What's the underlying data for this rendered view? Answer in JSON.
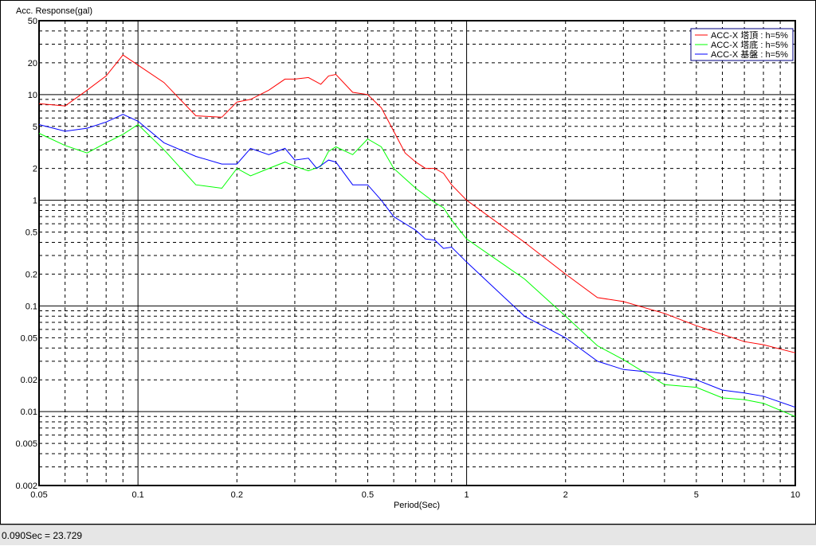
{
  "chart_data": {
    "type": "line",
    "title": "",
    "ylabel": "Acc. Response(gal)",
    "xlabel": "Period(Sec)",
    "xscale": "log",
    "yscale": "log",
    "xlim": [
      0.05,
      10
    ],
    "ylim": [
      0.002,
      50
    ],
    "grid": true,
    "legend_placement": "top-right",
    "x_ticks": [
      "0.05",
      "0.1",
      "0.2",
      "0.5",
      "1",
      "2",
      "5",
      "10"
    ],
    "y_ticks": [
      "50",
      "20",
      "10",
      "5",
      "2",
      "1",
      "0.5",
      "0.2",
      "0.1",
      "0.05",
      "0.02",
      "0.01",
      "0.005",
      "0.002"
    ],
    "series": [
      {
        "name": "ACC-X 塔頂 : h=5%",
        "color": "#ff0000",
        "x": [
          0.05,
          0.06,
          0.07,
          0.08,
          0.09,
          0.1,
          0.12,
          0.15,
          0.18,
          0.2,
          0.22,
          0.25,
          0.28,
          0.3,
          0.33,
          0.36,
          0.38,
          0.4,
          0.45,
          0.5,
          0.55,
          0.6,
          0.65,
          0.7,
          0.75,
          0.8,
          0.85,
          0.9,
          1,
          1.5,
          2,
          2.5,
          3,
          4,
          5,
          7,
          8,
          10
        ],
        "y": [
          8.2,
          7.8,
          11,
          15,
          23.7,
          19,
          13,
          6.3,
          6.1,
          8.5,
          9,
          11,
          14,
          14,
          14.5,
          12.5,
          15,
          15.5,
          10.5,
          10,
          7.5,
          4.5,
          2.8,
          2.3,
          2,
          2,
          1.8,
          1.4,
          1.0,
          0.4,
          0.2,
          0.12,
          0.11,
          0.085,
          0.065,
          0.046,
          0.043,
          0.036
        ]
      },
      {
        "name": "ACC-X 塔底 : h=5%",
        "color": "#00ff00",
        "x": [
          0.05,
          0.06,
          0.07,
          0.08,
          0.09,
          0.1,
          0.12,
          0.15,
          0.18,
          0.2,
          0.22,
          0.25,
          0.28,
          0.3,
          0.33,
          0.36,
          0.38,
          0.4,
          0.45,
          0.5,
          0.55,
          0.6,
          0.7,
          0.8,
          0.85,
          0.9,
          1,
          1.5,
          2,
          2.5,
          3,
          4,
          5,
          6,
          7,
          8,
          10
        ],
        "y": [
          4.3,
          3.3,
          2.8,
          3.5,
          4.2,
          5.2,
          3,
          1.4,
          1.3,
          2,
          1.7,
          2,
          2.3,
          2.1,
          1.9,
          2.1,
          2.9,
          3.2,
          2.7,
          3.8,
          3.2,
          2,
          1.3,
          0.95,
          0.85,
          0.65,
          0.43,
          0.18,
          0.08,
          0.042,
          0.031,
          0.018,
          0.017,
          0.0135,
          0.013,
          0.012,
          0.009
        ]
      },
      {
        "name": "ACC-X 基盤 : h=5%",
        "color": "#0000ff",
        "x": [
          0.05,
          0.06,
          0.07,
          0.08,
          0.09,
          0.1,
          0.12,
          0.15,
          0.18,
          0.2,
          0.22,
          0.25,
          0.28,
          0.3,
          0.33,
          0.35,
          0.38,
          0.4,
          0.45,
          0.5,
          0.55,
          0.6,
          0.7,
          0.75,
          0.8,
          0.85,
          0.9,
          1,
          1.5,
          2,
          2.5,
          3,
          4,
          5,
          6,
          7,
          8,
          10
        ],
        "y": [
          5.2,
          4.5,
          4.8,
          5.5,
          6.5,
          5.6,
          3.5,
          2.6,
          2.2,
          2.2,
          3.1,
          2.7,
          3.1,
          2.4,
          2.5,
          2,
          2.4,
          2.3,
          1.4,
          1.4,
          1,
          0.7,
          0.52,
          0.43,
          0.42,
          0.35,
          0.36,
          0.26,
          0.08,
          0.05,
          0.03,
          0.025,
          0.023,
          0.02,
          0.016,
          0.015,
          0.014,
          0.011
        ]
      }
    ]
  },
  "status": {
    "readout": "0.090Sec = 23.729"
  }
}
